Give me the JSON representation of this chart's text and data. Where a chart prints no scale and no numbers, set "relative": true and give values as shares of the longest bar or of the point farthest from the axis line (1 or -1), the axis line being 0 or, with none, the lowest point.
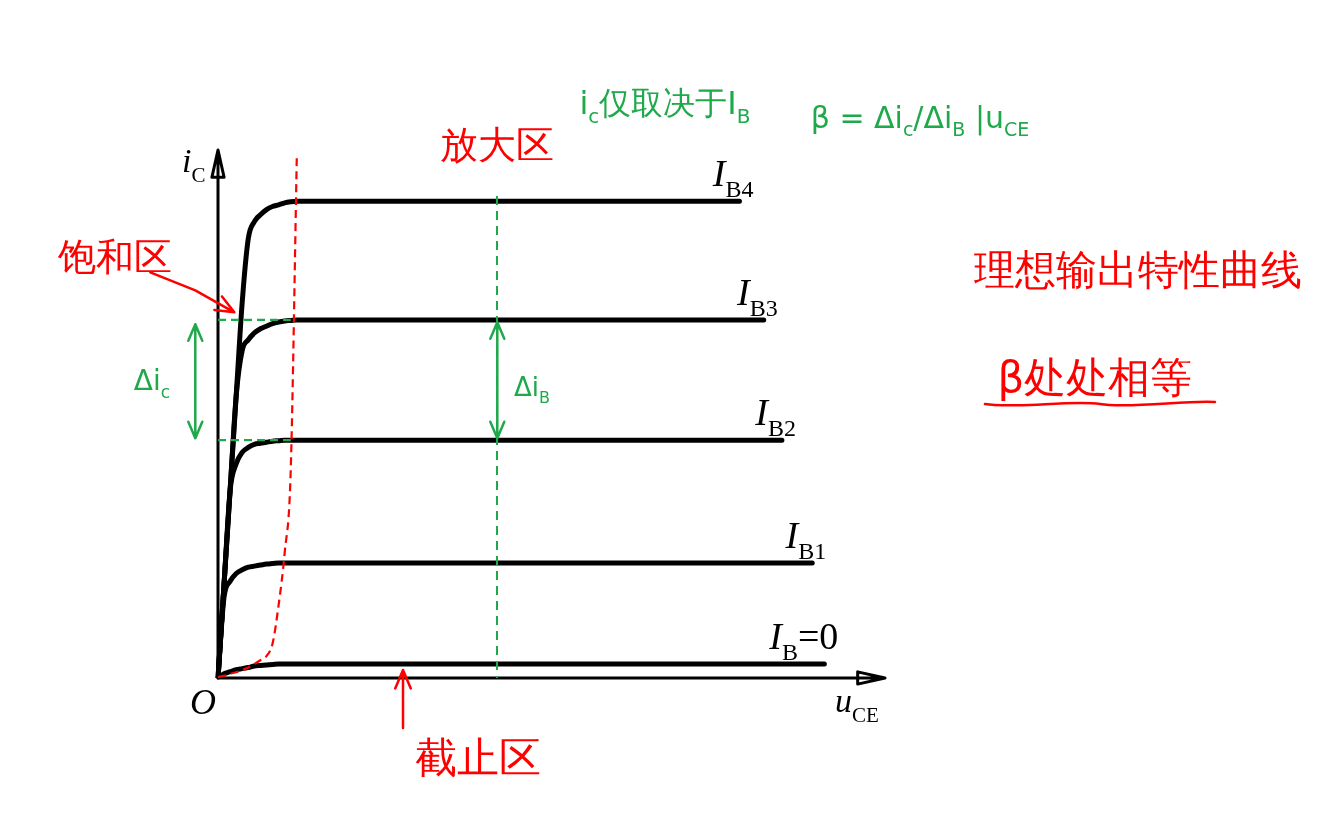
{
  "chart_data": {
    "type": "line",
    "relative": true,
    "xlabel": "u$_{CE}$",
    "ylabel": "i$_{C}$",
    "categories": [
      null,
      null,
      null,
      null,
      null,
      null,
      null,
      null,
      null,
      null,
      null,
      null,
      null,
      null,
      null,
      null,
      null,
      null,
      null,
      null,
      null,
      null,
      null,
      null,
      null,
      null,
      null,
      null,
      null,
      null,
      null,
      null,
      null,
      null,
      null,
      null,
      null,
      null,
      null,
      null,
      null,
      null,
      null,
      null,
      null,
      null,
      null,
      null,
      null,
      null,
      null,
      null,
      null,
      null,
      null,
      null,
      null,
      null,
      null,
      null,
      null,
      null,
      null,
      null,
      null,
      null,
      null,
      null,
      null,
      null,
      null,
      null,
      null,
      null,
      null,
      null,
      null,
      null,
      null,
      null,
      null,
      null,
      null,
      null,
      null,
      null,
      null,
      null,
      null,
      null,
      null,
      null,
      null,
      null,
      null,
      null,
      null,
      null,
      null,
      null,
      null,
      null,
      null,
      null,
      null,
      null,
      null,
      null,
      null,
      null,
      null
    ],
    "series": [
      {
        "name": "I$_{B4}$",
        "color": "#000000",
        "values": [
          0,
          0.18,
          0.36,
          0.54,
          0.72,
          0.841,
          0.873,
          0.886,
          0.896,
          0.902,
          0.905,
          0.909,
          0.911,
          0.912,
          0.912,
          0.912,
          0.912,
          0.912,
          0.912,
          0.912,
          0.912,
          0.912,
          0.912,
          0.912,
          0.912,
          0.912,
          0.912,
          0.912,
          0.912,
          0.912,
          0.912,
          0.912,
          0.912,
          0.912,
          0.912,
          0.912,
          0.912,
          0.912,
          0.912,
          0.912,
          0.912,
          0.912,
          0.912,
          0.912,
          0.912,
          0.912,
          0.912,
          0.912,
          0.912,
          0.912,
          0.912,
          0.912,
          0.912,
          0.912,
          0.912,
          0.912,
          0.912,
          0.912,
          0.912,
          0.912,
          0.912,
          0.912,
          0.912,
          0.912,
          0.912,
          0.912,
          0.912,
          0.912,
          0.912,
          0.912,
          0.912,
          0.912,
          0.912,
          0.912,
          0.912,
          0.912,
          0.912,
          0.912,
          0.912,
          0.912,
          0.912,
          0.912,
          0.912,
          0.912,
          0.912,
          0.912,
          0.912,
          null,
          null,
          null,
          null,
          null,
          null,
          null,
          null,
          null,
          null,
          null,
          null,
          null,
          null,
          null,
          null,
          null,
          null,
          null,
          null,
          null,
          null,
          null,
          null
        ]
      },
      {
        "name": "I$_{B3}$",
        "color": "#000000",
        "values": [
          0,
          0.18,
          0.36,
          0.54,
          0.627,
          0.647,
          0.66,
          0.668,
          0.673,
          0.678,
          0.681,
          0.683,
          0.684,
          0.685,
          0.685,
          0.685,
          0.685,
          0.685,
          0.685,
          0.685,
          0.685,
          0.685,
          0.685,
          0.685,
          0.685,
          0.685,
          0.685,
          0.685,
          0.685,
          0.685,
          0.685,
          0.685,
          0.685,
          0.685,
          0.685,
          0.685,
          0.685,
          0.685,
          0.685,
          0.685,
          0.685,
          0.685,
          0.685,
          0.685,
          0.685,
          0.685,
          0.685,
          0.685,
          0.685,
          0.685,
          0.685,
          0.685,
          0.685,
          0.685,
          0.685,
          0.685,
          0.685,
          0.685,
          0.685,
          0.685,
          0.685,
          0.685,
          0.685,
          0.685,
          0.685,
          0.685,
          0.685,
          0.685,
          0.685,
          0.685,
          0.685,
          0.685,
          0.685,
          0.685,
          0.685,
          0.685,
          0.685,
          0.685,
          0.685,
          0.685,
          0.685,
          0.685,
          0.685,
          0.685,
          0.685,
          0.685,
          0.685,
          0.685,
          0.685,
          0.685,
          0.685,
          null,
          null,
          null,
          null,
          null,
          null,
          null,
          null,
          null,
          null,
          null,
          null,
          null,
          null,
          null,
          null,
          null,
          null,
          null,
          null
        ]
      },
      {
        "name": "I$_{B2}$",
        "color": "#000000",
        "values": [
          0,
          0.18,
          0.359,
          0.41,
          0.432,
          0.441,
          0.447,
          0.449,
          0.451,
          0.453,
          0.454,
          0.455,
          0.455,
          0.455,
          0.455,
          0.455,
          0.455,
          0.455,
          0.455,
          0.455,
          0.455,
          0.455,
          0.455,
          0.455,
          0.455,
          0.455,
          0.455,
          0.455,
          0.455,
          0.455,
          0.455,
          0.455,
          0.455,
          0.455,
          0.455,
          0.455,
          0.455,
          0.455,
          0.455,
          0.455,
          0.455,
          0.455,
          0.455,
          0.455,
          0.455,
          0.455,
          0.455,
          0.455,
          0.455,
          0.455,
          0.455,
          0.455,
          0.455,
          0.455,
          0.455,
          0.455,
          0.455,
          0.455,
          0.455,
          0.455,
          0.455,
          0.455,
          0.455,
          0.455,
          0.455,
          0.455,
          0.455,
          0.455,
          0.455,
          0.455,
          0.455,
          0.455,
          0.455,
          0.455,
          0.455,
          0.455,
          0.455,
          0.455,
          0.455,
          0.455,
          0.455,
          0.455,
          0.455,
          0.455,
          0.455,
          0.455,
          0.455,
          0.455,
          0.455,
          0.455,
          0.455,
          0.455,
          0.455,
          0.455,
          null,
          null,
          null,
          null,
          null,
          null,
          null,
          null,
          null,
          null,
          null,
          null,
          null,
          null,
          null,
          null,
          null
        ]
      },
      {
        "name": "I$_{B1}$",
        "color": "#000000",
        "values": [
          0,
          0.155,
          0.185,
          0.2,
          0.207,
          0.212,
          0.214,
          0.216,
          0.218,
          0.219,
          0.22,
          0.22,
          0.22,
          0.22,
          0.22,
          0.22,
          0.22,
          0.22,
          0.22,
          0.22,
          0.22,
          0.22,
          0.22,
          0.22,
          0.22,
          0.22,
          0.22,
          0.22,
          0.22,
          0.22,
          0.22,
          0.22,
          0.22,
          0.22,
          0.22,
          0.22,
          0.22,
          0.22,
          0.22,
          0.22,
          0.22,
          0.22,
          0.22,
          0.22,
          0.22,
          0.22,
          0.22,
          0.22,
          0.22,
          0.22,
          0.22,
          0.22,
          0.22,
          0.22,
          0.22,
          0.22,
          0.22,
          0.22,
          0.22,
          0.22,
          0.22,
          0.22,
          0.22,
          0.22,
          0.22,
          0.22,
          0.22,
          0.22,
          0.22,
          0.22,
          0.22,
          0.22,
          0.22,
          0.22,
          0.22,
          0.22,
          0.22,
          0.22,
          0.22,
          0.22,
          0.22,
          0.22,
          0.22,
          0.22,
          0.22,
          0.22,
          0.22,
          0.22,
          0.22,
          0.22,
          0.22,
          0.22,
          0.22,
          0.22,
          0.22,
          0.22,
          0.22,
          0.22,
          0.22,
          null,
          null,
          null,
          null,
          null,
          null,
          null,
          null,
          null,
          null,
          null,
          null
        ]
      },
      {
        "name": "I$_{B}$=0",
        "color": "#000000",
        "values": [
          0,
          0.008,
          0.012,
          0.016,
          0.018,
          0.02,
          0.023,
          0.024,
          0.025,
          0.026,
          0.027,
          0.027,
          0.027,
          0.027,
          0.027,
          0.027,
          0.027,
          0.027,
          0.027,
          0.027,
          0.027,
          0.027,
          0.027,
          0.027,
          0.027,
          0.027,
          0.027,
          0.027,
          0.027,
          0.027,
          0.027,
          0.027,
          0.027,
          0.027,
          0.027,
          0.027,
          0.027,
          0.027,
          0.027,
          0.027,
          0.027,
          0.027,
          0.027,
          0.027,
          0.027,
          0.027,
          0.027,
          0.027,
          0.027,
          0.027,
          0.027,
          0.027,
          0.027,
          0.027,
          0.027,
          0.027,
          0.027,
          0.027,
          0.027,
          0.027,
          0.027,
          0.027,
          0.027,
          0.027,
          0.027,
          0.027,
          0.027,
          0.027,
          0.027,
          0.027,
          0.027,
          0.027,
          0.027,
          0.027,
          0.027,
          0.027,
          0.027,
          0.027,
          0.027,
          0.027,
          0.027,
          0.027,
          0.027,
          0.027,
          0.027,
          0.027,
          0.027,
          0.027,
          0.027,
          0.027,
          0.027,
          0.027,
          0.027,
          0.027,
          0.027,
          0.027,
          0.027,
          0.027,
          0.027,
          0.027,
          0.027,
          null,
          null,
          null,
          null,
          null,
          null,
          null,
          null,
          null,
          null
        ]
      },
      {
        "type": "line",
        "color": "#ff0000",
        "line_style": "dashed",
        "values": [
          0.002,
          0.004,
          0.008,
          0.011,
          0.015,
          0.02,
          0.027,
          0.034,
          0.042,
          0.066,
          0.14,
          0.24,
          0.4,
          1,
          null,
          null,
          null,
          null,
          null,
          null,
          null,
          null,
          null,
          null,
          null,
          null,
          null,
          null,
          null,
          null,
          null,
          null,
          null,
          null,
          null,
          null,
          null,
          null,
          null,
          null,
          null,
          null,
          null,
          null,
          null,
          null,
          null,
          null,
          null,
          null,
          null,
          null,
          null,
          null,
          null,
          null,
          null,
          null,
          null,
          null,
          null,
          null,
          null,
          null,
          null,
          null,
          null,
          null,
          null,
          null,
          null,
          null,
          null,
          null,
          null,
          null,
          null,
          null,
          null,
          null,
          null,
          null,
          null,
          null,
          null,
          null,
          null,
          null,
          null,
          null,
          null,
          null,
          null,
          null,
          null,
          null,
          null,
          null,
          null,
          null,
          null,
          null,
          null,
          null,
          null,
          null,
          null,
          null,
          null,
          null,
          null
        ]
      },
      {
        "type": "line",
        "color": "#1fa94b",
        "line_style": "dashed",
        "values": [
          0.685,
          0.685,
          0.685,
          0.685,
          0.685,
          0.685,
          0.685,
          0.685,
          0.685,
          0.685,
          0.685,
          0.685,
          0.685,
          null,
          null,
          null,
          null,
          null,
          null,
          null,
          null,
          null,
          null,
          null,
          null,
          null,
          null,
          null,
          null,
          null,
          null,
          null,
          null,
          null,
          null,
          null,
          null,
          null,
          null,
          null,
          null,
          null,
          null,
          null,
          null,
          null,
          null,
          null,
          null,
          null,
          null,
          null,
          null,
          null,
          null,
          null,
          null,
          null,
          null,
          null,
          null,
          null,
          null,
          null,
          null,
          null,
          null,
          null,
          null,
          null,
          null,
          null,
          null,
          null,
          null,
          null,
          null,
          null,
          null,
          null,
          null,
          null,
          null,
          null,
          null,
          null,
          null,
          null,
          null,
          null,
          null,
          null,
          null,
          null,
          null,
          null,
          null,
          null,
          null,
          null,
          null,
          null,
          null,
          null,
          null,
          null,
          null,
          null,
          null,
          null,
          null
        ]
      },
      {
        "type": "line",
        "color": "#1fa94b",
        "line_style": "dashed",
        "values": [
          0.455,
          0.455,
          0.455,
          0.455,
          0.455,
          0.455,
          0.455,
          0.455,
          0.455,
          0.455,
          0.455,
          0.455,
          0.455,
          null,
          null,
          null,
          null,
          null,
          null,
          null,
          null,
          null,
          null,
          null,
          null,
          null,
          null,
          null,
          null,
          null,
          null,
          null,
          null,
          null,
          null,
          null,
          null,
          null,
          null,
          null,
          null,
          null,
          null,
          null,
          null,
          null,
          null,
          null,
          null,
          null,
          null,
          null,
          null,
          null,
          null,
          null,
          null,
          null,
          null,
          null,
          null,
          null,
          null,
          null,
          null,
          null,
          null,
          null,
          null,
          null,
          null,
          null,
          null,
          null,
          null,
          null,
          null,
          null,
          null,
          null,
          null,
          null,
          null,
          null,
          null,
          null,
          null,
          null,
          null,
          null,
          null,
          null,
          null,
          null,
          null,
          null,
          null,
          null,
          null,
          null,
          null,
          null,
          null,
          null,
          null,
          null,
          null,
          null,
          null,
          null,
          null
        ]
      }
    ],
    "annotations": [
      "放大区",
      "饱和区",
      "截止区",
      "理想输出特性曲线",
      "β处处相等",
      "i$_{c}$仅取决于I$_{B}$",
      "β = Δi$_{c}$/Δi$_{B}$ |u$_{CE}$",
      "Δi$_{c}$",
      "Δi$_{B}$",
      "O"
    ]
  }
}
